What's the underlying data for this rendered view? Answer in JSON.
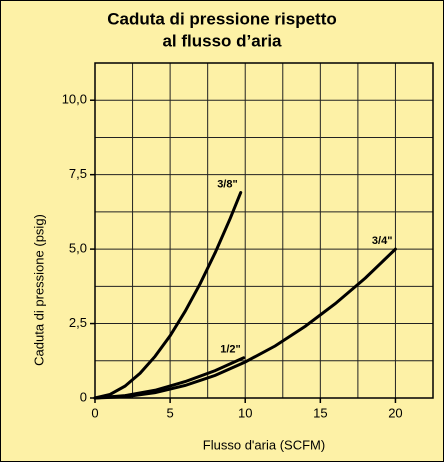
{
  "chart_data": {
    "type": "line",
    "title": [
      "Caduta di pressione rispetto",
      "al flusso d’aria"
    ],
    "x_label": "Flusso d'aria (SCFM)",
    "y_label": "Caduta di pressione (psig)",
    "xlim": [
      0,
      22.5
    ],
    "ylim": [
      0,
      11.25
    ],
    "xticks": [
      0,
      5,
      10,
      15,
      20
    ],
    "yticks": [
      0,
      {
        "value": 2.5,
        "label": "2,5"
      },
      {
        "value": 5,
        "label": "5,0"
      },
      {
        "value": 7.5,
        "label": "7,5"
      },
      {
        "value": 10,
        "label": "10,0"
      }
    ],
    "grid": true,
    "grid_x": [
      2.5,
      5,
      7.5,
      10,
      12.5,
      15,
      17.5,
      20
    ],
    "grid_y": [
      1.25,
      2.5,
      3.75,
      5,
      6.25,
      7.5,
      8.75,
      10
    ],
    "background": "#fdf1a6",
    "series": [
      {
        "name": "3/8\"",
        "color": "#000000",
        "x": [
          0,
          1,
          2,
          3,
          4,
          5,
          6,
          7,
          8,
          9,
          9.7
        ],
        "values": [
          0,
          0.12,
          0.4,
          0.83,
          1.4,
          2.09,
          2.91,
          3.84,
          4.88,
          6.03,
          6.9
        ]
      },
      {
        "name": "1/2\"",
        "color": "#000000",
        "x": [
          0,
          2,
          4,
          6,
          8,
          9.9
        ],
        "values": [
          0,
          0.08,
          0.26,
          0.55,
          0.92,
          1.35
        ]
      },
      {
        "name": "3/4\"",
        "color": "#000000",
        "x": [
          0,
          2,
          4,
          6,
          8,
          10,
          12,
          14,
          16,
          18,
          20
        ],
        "values": [
          0,
          0.04,
          0.18,
          0.42,
          0.76,
          1.21,
          1.75,
          2.41,
          3.17,
          4.03,
          5
        ]
      }
    ]
  }
}
